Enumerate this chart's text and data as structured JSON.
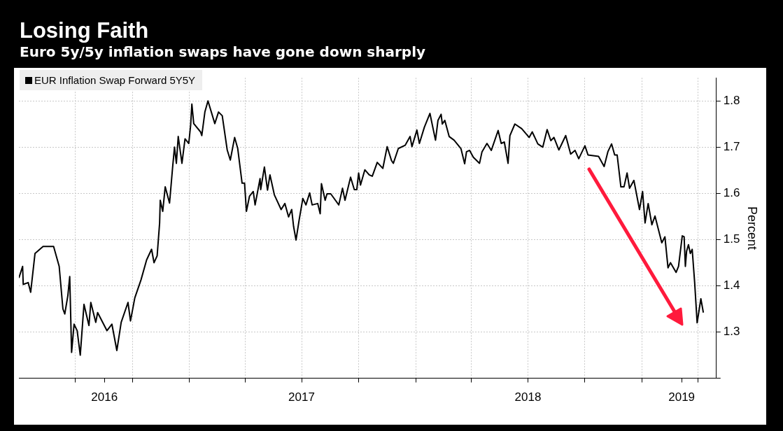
{
  "chart_data": {
    "type": "line",
    "title": "Losing Faith",
    "subtitle": "Euro 5y/5y inflation swaps have gone down sharply",
    "ylabel": "Percent",
    "legend": "top left",
    "grid": true,
    "marker": "none",
    "xlim": [
      "2016-04-01",
      "2019-05-01"
    ],
    "xticks": [
      {
        "value": "2016-07-01",
        "label": null
      },
      {
        "value": "2016-08-17",
        "label": "2016"
      },
      {
        "value": "2016-10-01",
        "label": null
      },
      {
        "value": "2017-01-01",
        "label": null
      },
      {
        "value": "2017-04-01",
        "label": null
      },
      {
        "value": "2017-07-01",
        "label": "2017"
      },
      {
        "value": "2017-10-01",
        "label": null
      },
      {
        "value": "2018-01-01",
        "label": null
      },
      {
        "value": "2018-04-01",
        "label": null
      },
      {
        "value": "2018-07-01",
        "label": "2018"
      },
      {
        "value": "2018-10-01",
        "label": null
      },
      {
        "value": "2019-01-01",
        "label": null
      },
      {
        "value": "2019-03-06",
        "label": "2019"
      },
      {
        "value": "2019-04-01",
        "label": null
      }
    ],
    "ylim": [
      1.2,
      1.85
    ],
    "yticks": [
      {
        "value": 1.2,
        "label": null
      },
      1.3,
      1.4,
      1.5,
      1.6,
      1.7,
      1.8
    ],
    "x": [
      "2016-04-01",
      "2016-04-07",
      "2016-04-08",
      "2016-04-16",
      "2016-04-20",
      "2016-04-27",
      "2016-05-10",
      "2016-05-27",
      "2016-06-05",
      "2016-06-11",
      "2016-06-14",
      "2016-06-19",
      "2016-06-22",
      "2016-06-25",
      "2016-06-29",
      "2016-07-04",
      "2016-07-09",
      "2016-07-15",
      "2016-07-23",
      "2016-07-26",
      "2016-08-03",
      "2016-08-06",
      "2016-08-21",
      "2016-08-29",
      "2016-09-06",
      "2016-09-13",
      "2016-09-24",
      "2016-09-28",
      "2016-10-05",
      "2016-10-15",
      "2016-10-24",
      "2016-11-01",
      "2016-11-05",
      "2016-11-10",
      "2016-11-14",
      "2016-11-15",
      "2016-11-19",
      "2016-11-23",
      "2016-11-30",
      "2016-12-05",
      "2016-12-08",
      "2016-12-11",
      "2016-12-14",
      "2016-12-20",
      "2016-12-25",
      "2016-12-31",
      "2017-01-03",
      "2017-01-05",
      "2017-01-08",
      "2017-01-19",
      "2017-01-21",
      "2017-01-26",
      "2017-01-31",
      "2017-02-11",
      "2017-02-17",
      "2017-02-23",
      "2017-03-03",
      "2017-03-08",
      "2017-03-15",
      "2017-03-20",
      "2017-03-27",
      "2017-03-31",
      "2017-04-03",
      "2017-04-08",
      "2017-04-14",
      "2017-04-17",
      "2017-04-25",
      "2017-04-26",
      "2017-05-02",
      "2017-05-07",
      "2017-05-11",
      "2017-05-18",
      "2017-05-29",
      "2017-06-04",
      "2017-06-10",
      "2017-06-15",
      "2017-06-18",
      "2017-06-22",
      "2017-06-27",
      "2017-07-03",
      "2017-07-08",
      "2017-07-14",
      "2017-07-18",
      "2017-07-27",
      "2017-07-31",
      "2017-08-02",
      "2017-08-08",
      "2017-08-11",
      "2017-08-17",
      "2017-08-30",
      "2017-09-05",
      "2017-09-09",
      "2017-09-18",
      "2017-09-24",
      "2017-09-28",
      "2017-10-01",
      "2017-10-04",
      "2017-10-11",
      "2017-10-18",
      "2017-10-23",
      "2017-10-31",
      "2017-11-09",
      "2017-11-16",
      "2017-11-23",
      "2017-11-26",
      "2017-12-04",
      "2017-12-15",
      "2017-12-23",
      "2017-12-26",
      "2018-01-03",
      "2018-01-07",
      "2018-01-15",
      "2018-01-24",
      "2018-01-28",
      "2018-02-02",
      "2018-02-06",
      "2018-02-11",
      "2018-02-13",
      "2018-02-17",
      "2018-02-24",
      "2018-03-04",
      "2018-03-15",
      "2018-03-21",
      "2018-03-24",
      "2018-03-29",
      "2018-04-04",
      "2018-04-14",
      "2018-04-18",
      "2018-04-26",
      "2018-05-03",
      "2018-05-14",
      "2018-05-19",
      "2018-05-24",
      "2018-05-30",
      "2018-06-02",
      "2018-06-10",
      "2018-06-21",
      "2018-07-03",
      "2018-07-08",
      "2018-07-17",
      "2018-07-25",
      "2018-08-01",
      "2018-08-07",
      "2018-08-12",
      "2018-08-20",
      "2018-08-31",
      "2018-09-08",
      "2018-09-15",
      "2018-09-21",
      "2018-10-01",
      "2018-10-06",
      "2018-10-23",
      "2018-11-01",
      "2018-11-07",
      "2018-11-13",
      "2018-11-18",
      "2018-11-22",
      "2018-11-28",
      "2018-12-03",
      "2018-12-08",
      "2018-12-12",
      "2018-12-19",
      "2018-12-28",
      "2019-01-02",
      "2019-01-06",
      "2019-01-11",
      "2019-01-17",
      "2019-01-22",
      "2019-02-02",
      "2019-02-07",
      "2019-02-12",
      "2019-02-16",
      "2019-02-25",
      "2019-03-01",
      "2019-03-07",
      "2019-03-10",
      "2019-03-12",
      "2019-03-14",
      "2019-03-17",
      "2019-03-20",
      "2019-03-23",
      "2019-03-27",
      "2019-03-31",
      "2019-04-06",
      "2019-04-10"
    ],
    "series": [
      {
        "name": "EUR Inflation Swap Forward 5Y5Y",
        "color": "#000000",
        "values": [
          1.417,
          1.442,
          1.403,
          1.407,
          1.386,
          1.47,
          1.485,
          1.485,
          1.442,
          1.35,
          1.339,
          1.379,
          1.42,
          1.256,
          1.317,
          1.303,
          1.25,
          1.36,
          1.314,
          1.364,
          1.321,
          1.342,
          1.303,
          1.317,
          1.26,
          1.321,
          1.364,
          1.324,
          1.374,
          1.413,
          1.456,
          1.479,
          1.45,
          1.465,
          1.536,
          1.585,
          1.561,
          1.614,
          1.579,
          1.657,
          1.7,
          1.665,
          1.723,
          1.665,
          1.718,
          1.708,
          1.747,
          1.793,
          1.751,
          1.733,
          1.725,
          1.776,
          1.8,
          1.751,
          1.776,
          1.768,
          1.694,
          1.672,
          1.721,
          1.697,
          1.622,
          1.622,
          1.561,
          1.594,
          1.604,
          1.575,
          1.632,
          1.608,
          1.657,
          1.607,
          1.64,
          1.597,
          1.565,
          1.578,
          1.549,
          1.565,
          1.529,
          1.499,
          1.542,
          1.589,
          1.575,
          1.601,
          1.575,
          1.578,
          1.556,
          1.621,
          1.585,
          1.599,
          1.599,
          1.575,
          1.611,
          1.585,
          1.635,
          1.608,
          1.608,
          1.644,
          1.618,
          1.651,
          1.64,
          1.637,
          1.667,
          1.654,
          1.701,
          1.671,
          1.665,
          1.697,
          1.704,
          1.723,
          1.701,
          1.737,
          1.708,
          1.743,
          1.773,
          1.747,
          1.715,
          1.758,
          1.771,
          1.75,
          1.758,
          1.723,
          1.715,
          1.697,
          1.664,
          1.69,
          1.693,
          1.678,
          1.665,
          1.69,
          1.708,
          1.693,
          1.736,
          1.708,
          1.711,
          1.665,
          1.725,
          1.75,
          1.74,
          1.721,
          1.733,
          1.707,
          1.7,
          1.738,
          1.714,
          1.721,
          1.694,
          1.725,
          1.685,
          1.693,
          1.675,
          1.703,
          1.683,
          1.68,
          1.658,
          1.69,
          1.707,
          1.683,
          1.683,
          1.614,
          1.614,
          1.644,
          1.611,
          1.628,
          1.565,
          1.604,
          1.536,
          1.578,
          1.532,
          1.551,
          1.493,
          1.506,
          1.439,
          1.45,
          1.429,
          1.442,
          1.508,
          1.506,
          1.442,
          1.475,
          1.489,
          1.47,
          1.479,
          1.407,
          1.32,
          1.372,
          1.342
        ]
      }
    ]
  }
}
